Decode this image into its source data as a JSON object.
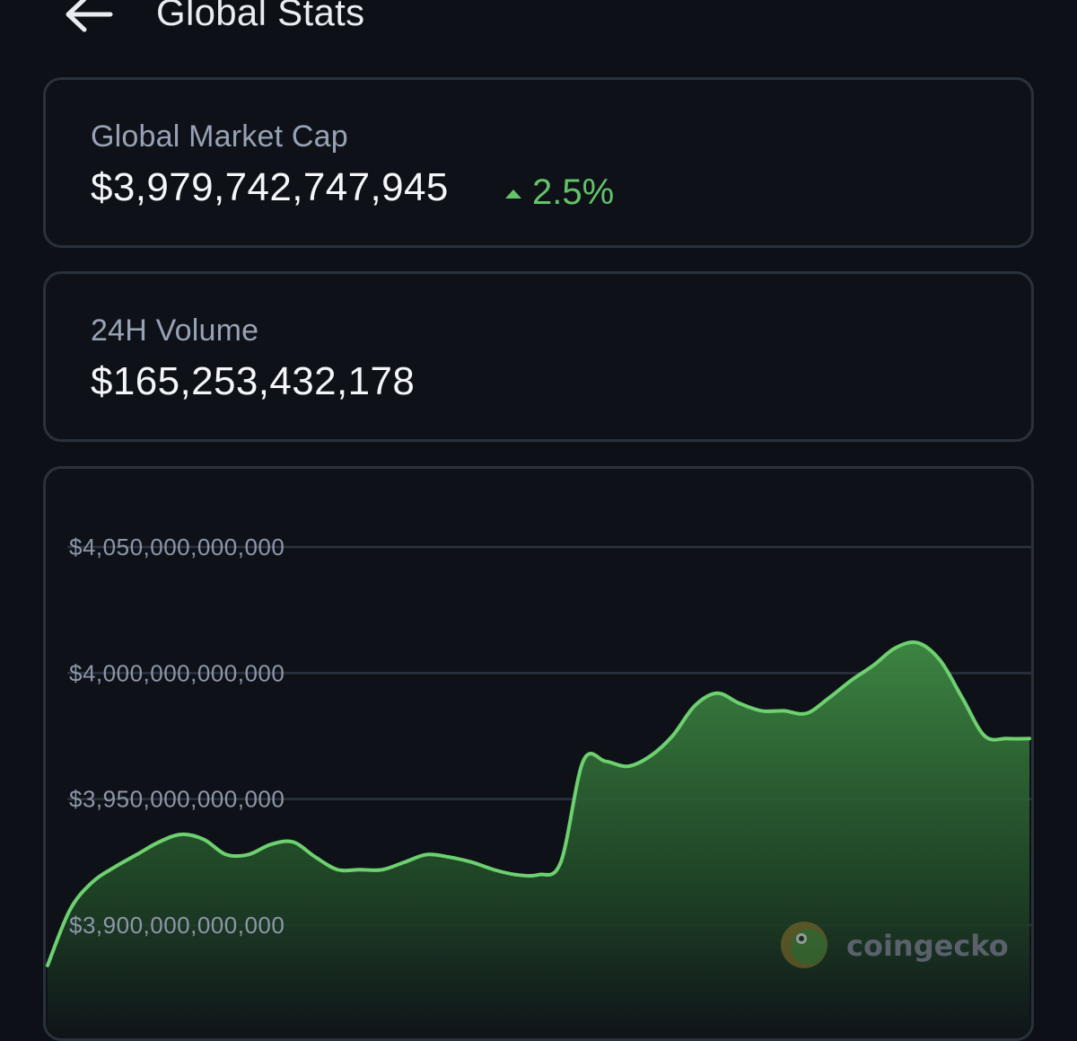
{
  "header": {
    "title": "Global Stats",
    "back_icon": "arrow-left-icon"
  },
  "market_cap": {
    "label": "Global Market Cap",
    "value": "$3,979,742,747,945",
    "change": "2.5%",
    "change_direction": "up",
    "change_icon": "caret-up-icon",
    "change_color": "#63c26a"
  },
  "volume": {
    "label": "24H Volume",
    "value": "$165,253,432,178"
  },
  "chart_data": {
    "type": "area",
    "title": "",
    "xlabel": "",
    "ylabel": "",
    "ylim": [
      3880000000000,
      4075000000000
    ],
    "y_ticks": [
      3900000000000,
      3950000000000,
      4000000000000,
      4050000000000
    ],
    "y_tick_labels": [
      "$3,900,000,000,000",
      "$3,950,000,000,000",
      "$4,000,000,000,000",
      "$4,050,000,000,000"
    ],
    "grid": true,
    "line_color": "#6dd16f",
    "series": [
      {
        "values": [
          3884,
          3906,
          3917,
          3923,
          3928,
          3933,
          3936,
          3934,
          3928,
          3928,
          3932,
          3933,
          3927,
          3922,
          3922,
          3922,
          3925,
          3928,
          3927,
          3925,
          3922,
          3920,
          3920,
          3925,
          3965,
          3965,
          3963,
          3967,
          3975,
          3987,
          3992,
          3988,
          3985,
          3985,
          3984,
          3990,
          3997,
          4003,
          4010,
          4012,
          4005,
          3990,
          3975,
          3974,
          3974
        ]
      }
    ]
  },
  "watermark": {
    "text": "coingecko",
    "icon": "gecko-logo-icon"
  }
}
